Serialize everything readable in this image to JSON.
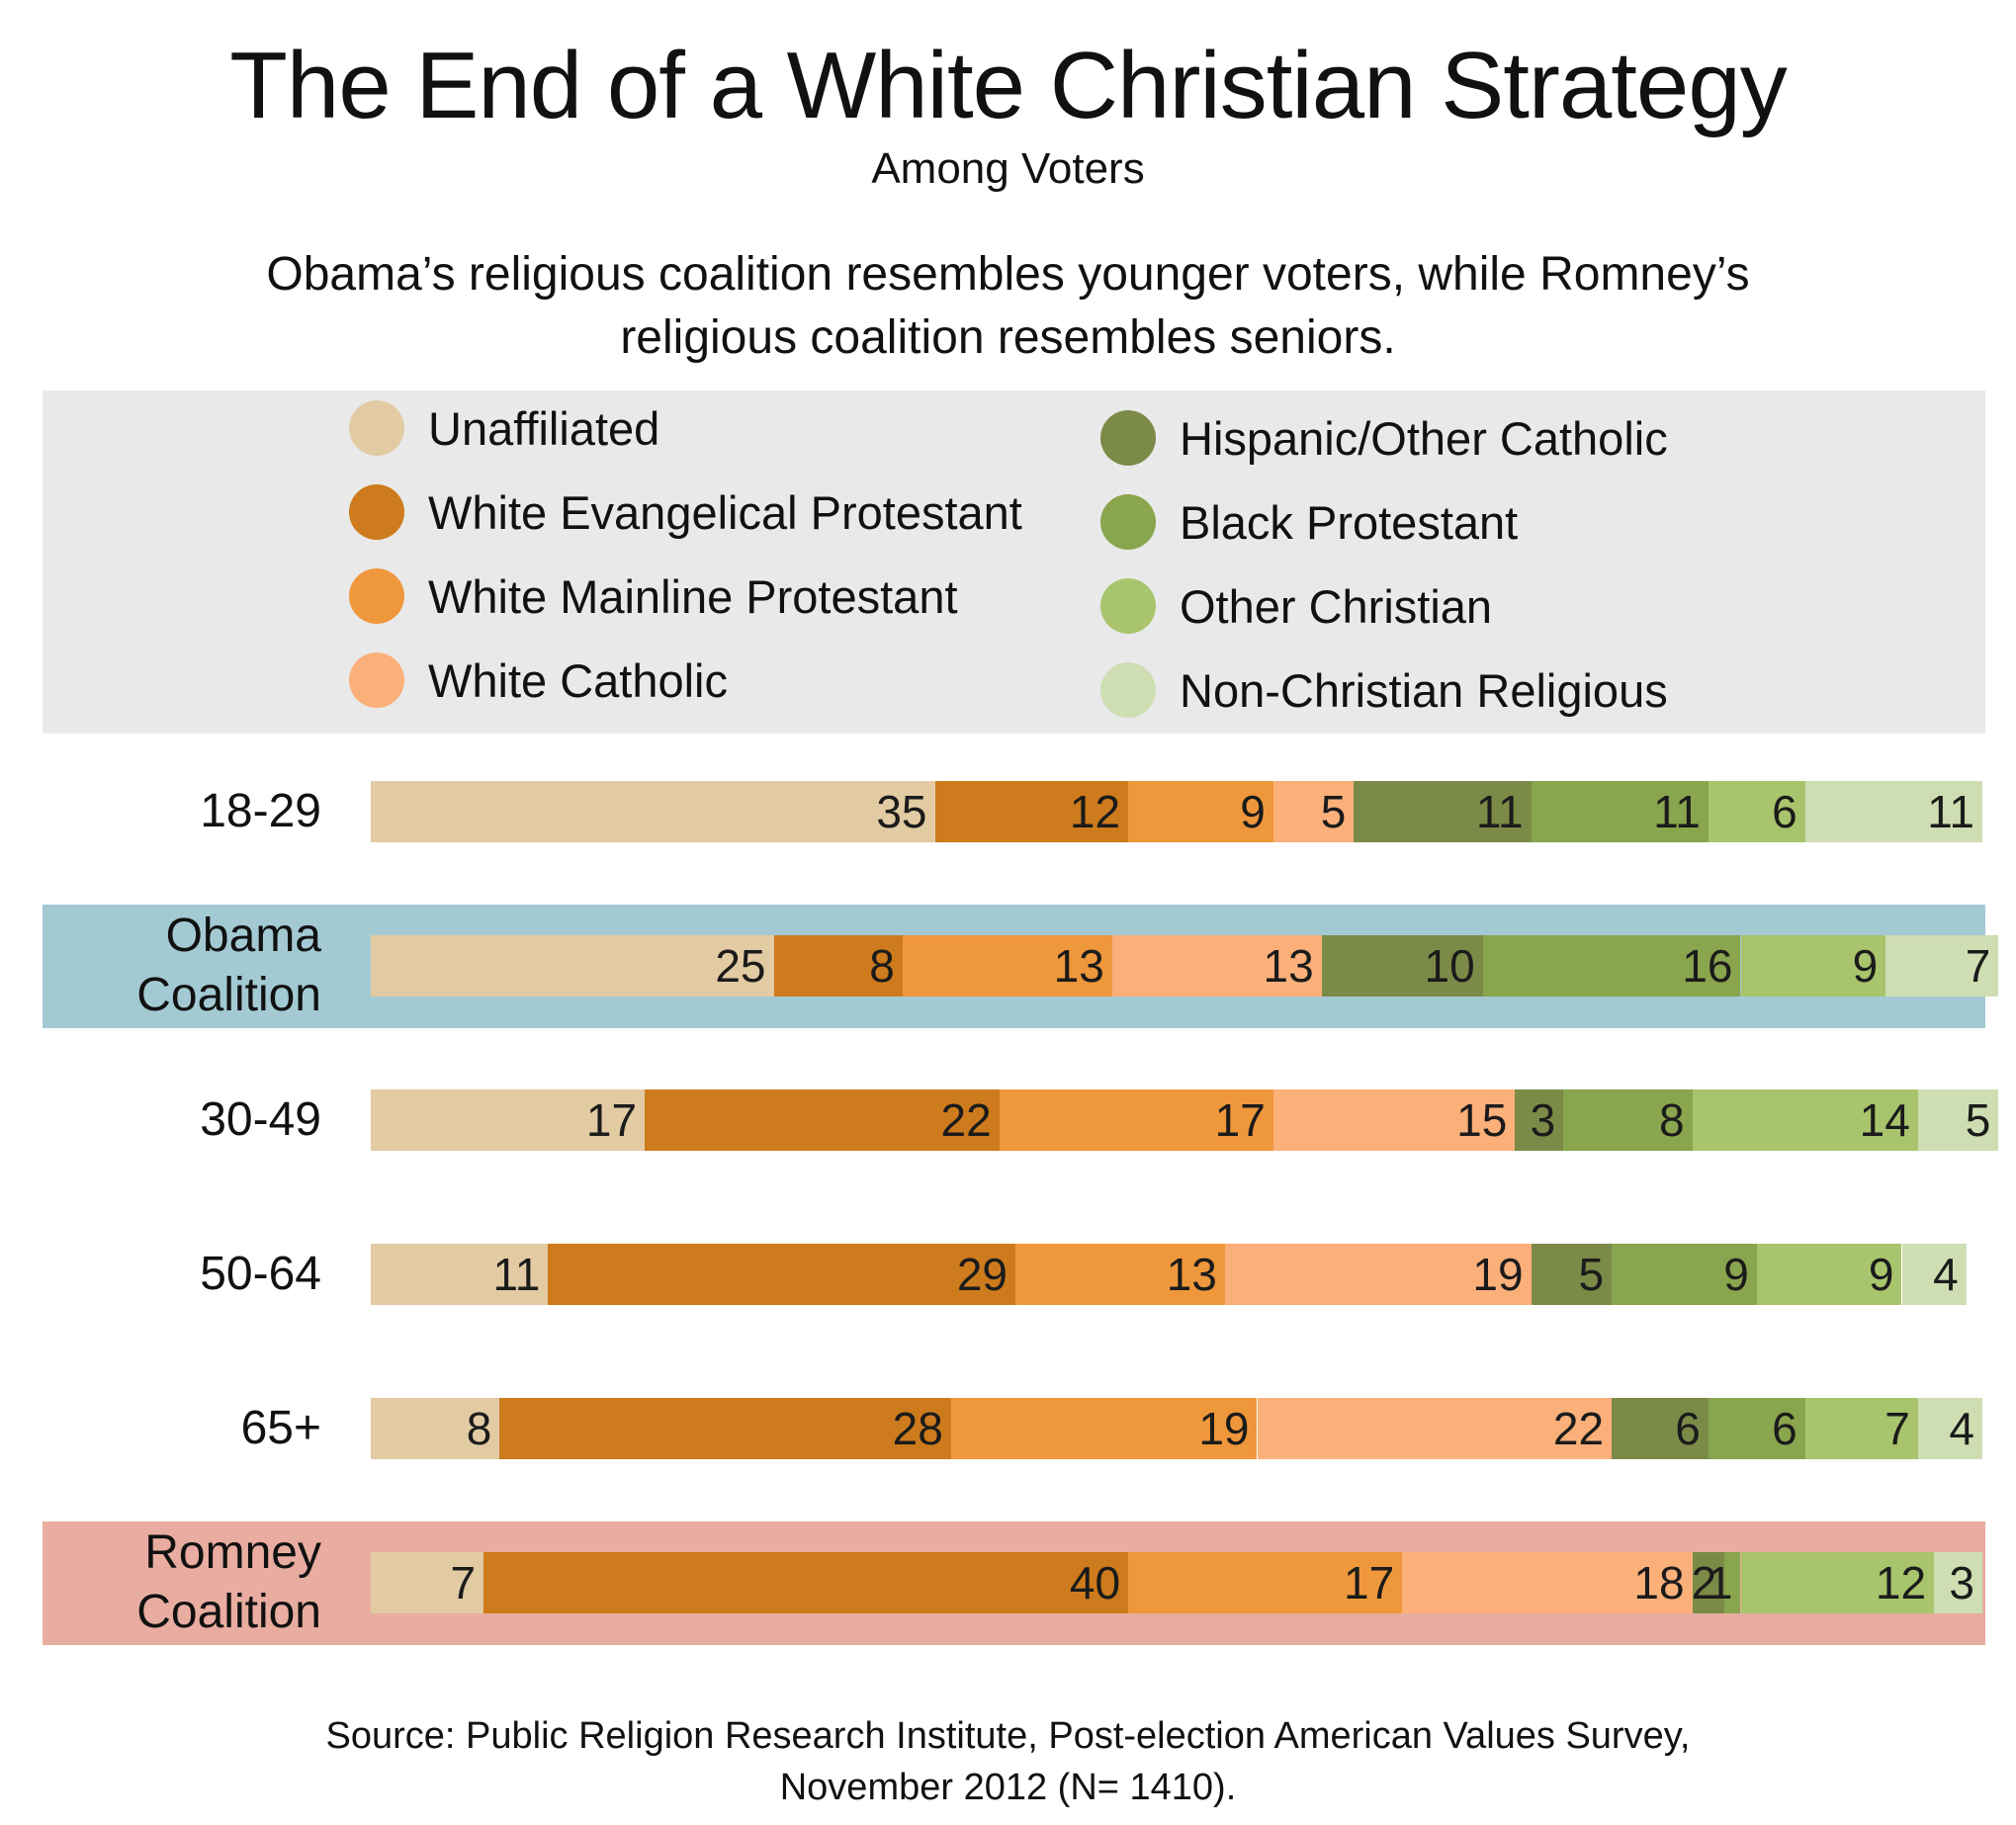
{
  "chart_data": {
    "type": "bar",
    "orientation": "horizontal",
    "stacked": true,
    "title": "The End of a White Christian Strategy",
    "subtitle": "Among Voters",
    "description": "Obama’s religious coalition resembles younger voters, while Romney’s religious coalition resembles seniors.",
    "categories": [
      "18-29",
      "Obama Coalition",
      "30-49",
      "50-64",
      "65+",
      "Romney Coalition"
    ],
    "category_highlights": {
      "Obama Coalition": "#a3cad3",
      "Romney Coalition": "#e8ada0"
    },
    "series": [
      {
        "name": "Unaffiliated",
        "color": "#e2caa2",
        "values": [
          35,
          25,
          17,
          11,
          8,
          7
        ]
      },
      {
        "name": "White Evangelical Protestant",
        "color": "#cd7b1c",
        "values": [
          12,
          8,
          22,
          29,
          28,
          40
        ]
      },
      {
        "name": "White Mainline Protestant",
        "color": "#ef973b",
        "values": [
          9,
          13,
          17,
          13,
          19,
          17
        ]
      },
      {
        "name": "White Catholic",
        "color": "#fbb07a",
        "values": [
          5,
          13,
          15,
          19,
          22,
          18
        ]
      },
      {
        "name": "Hispanic/Other Catholic",
        "color": "#7c8a48",
        "values": [
          11,
          10,
          3,
          5,
          6,
          2
        ]
      },
      {
        "name": "Black Protestant",
        "color": "#89a54d",
        "values": [
          11,
          16,
          8,
          9,
          6,
          1
        ]
      },
      {
        "name": "Other Christian",
        "color": "#a8c46c",
        "values": [
          6,
          9,
          14,
          9,
          7,
          12
        ]
      },
      {
        "name": "Non-Christian Religious",
        "color": "#cfdeb2",
        "values": [
          11,
          7,
          5,
          4,
          4,
          3
        ]
      }
    ],
    "xlim": [
      0,
      100
    ],
    "legend_placement": "top",
    "grid": false
  },
  "source": {
    "line1": "Source: Public Religion Research Institute, Post-election American Values Survey,",
    "line2": "November 2012 (N= 1410)."
  }
}
